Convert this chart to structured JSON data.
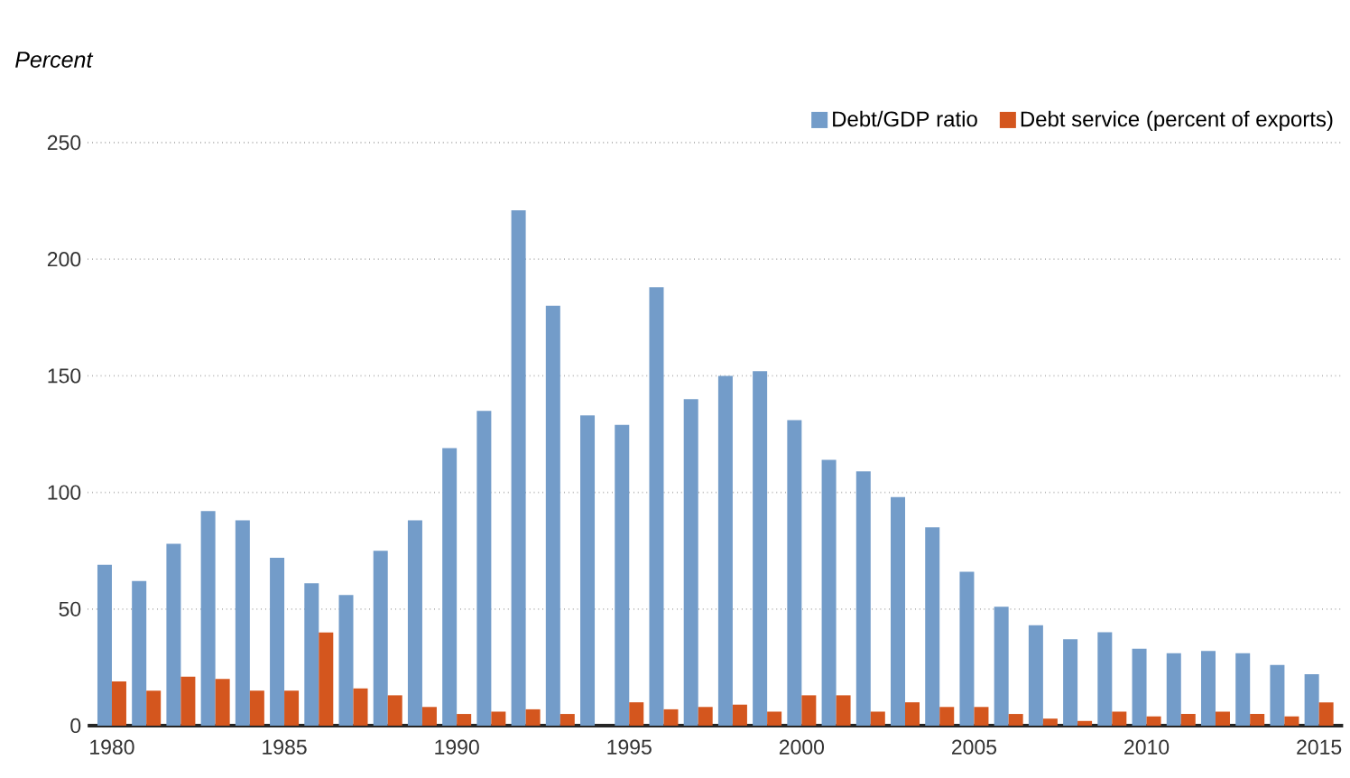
{
  "chart_data": {
    "type": "bar",
    "ylabel": "Percent",
    "x": [
      1980,
      1981,
      1982,
      1983,
      1984,
      1985,
      1986,
      1987,
      1988,
      1989,
      1990,
      1991,
      1992,
      1993,
      1994,
      1995,
      1996,
      1997,
      1998,
      1999,
      2000,
      2001,
      2002,
      2003,
      2004,
      2005,
      2006,
      2007,
      2008,
      2009,
      2010,
      2011,
      2012,
      2013,
      2014,
      2015
    ],
    "series": [
      {
        "name": "Debt/GDP ratio",
        "color": "#739cc9",
        "values": [
          69,
          62,
          78,
          92,
          88,
          72,
          61,
          56,
          75,
          88,
          119,
          135,
          221,
          180,
          133,
          129,
          188,
          140,
          150,
          152,
          131,
          114,
          109,
          98,
          85,
          66,
          51,
          43,
          37,
          40,
          33,
          31,
          32,
          31,
          26,
          22
        ]
      },
      {
        "name": "Debt service (percent of exports)",
        "color": "#d4561e",
        "values": [
          19,
          15,
          21,
          20,
          15,
          15,
          40,
          16,
          13,
          8,
          5,
          6,
          7,
          5,
          0,
          10,
          7,
          8,
          9,
          6,
          13,
          13,
          6,
          10,
          8,
          8,
          5,
          3,
          2,
          6,
          4,
          5,
          6,
          5,
          4,
          10
        ]
      }
    ],
    "xlim": [
      1979.3,
      2015.7
    ],
    "xticks": [
      1980,
      1985,
      1990,
      1995,
      2000,
      2005,
      2010,
      2015
    ],
    "ylim": [
      0,
      250
    ],
    "yticks": [
      0,
      50,
      100,
      150,
      200,
      250
    ],
    "grid": "y",
    "legend": "top right"
  }
}
